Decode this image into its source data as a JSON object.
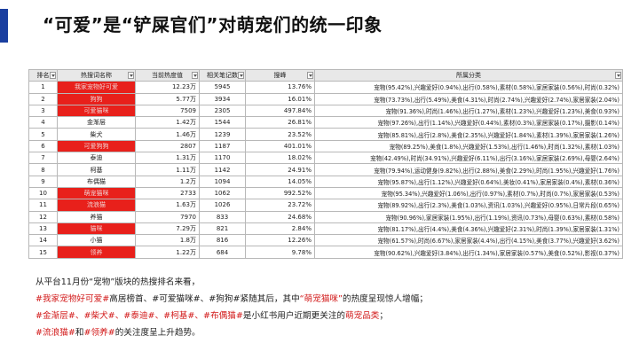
{
  "slide": {
    "title": "“可爱”是“铲屎官们”对萌宠们的统一印象"
  },
  "table": {
    "headers": [
      "排名",
      "热搜词名称",
      "当前热度值",
      "相关笔记数",
      "搜峰",
      "所属分类"
    ],
    "rows": [
      {
        "rank": "1",
        "name": "我家宠物好可爱",
        "heat": "12.23万",
        "count": "5945",
        "soar": "13.76%",
        "category": "宠物(95.42%),兴趣爱好(0.94%),出行(0.58%),素材(0.58%),家居家装(0.56%),时尚(0.32%)",
        "red": true
      },
      {
        "rank": "2",
        "name": "狗狗",
        "heat": "5.77万",
        "count": "3934",
        "soar": "16.01%",
        "category": "宠物(73.73%),出行(5.49%),美食(4.31%),时尚(2.74%),兴趣爱好(2.74%),家居家装(2.04%)",
        "red": true
      },
      {
        "rank": "3",
        "name": "可爱猫咪",
        "heat": "7509",
        "count": "2305",
        "soar": "497.84%",
        "category": "宠物(91.36%),时尚(1.46%),出行(1.27%),素材(1.23%),兴趣爱好(1.23%),美食(0.93%)",
        "red": true
      },
      {
        "rank": "4",
        "name": "金渐层",
        "heat": "1.42万",
        "count": "1544",
        "soar": "26.81%",
        "category": "宠物(97.26%),出行(1.14%),兴趣爱好(0.44%),素材(0.3%),家居家装(0.17%),摄影(0.14%)",
        "red": false
      },
      {
        "rank": "5",
        "name": "柴犬",
        "heat": "1.46万",
        "count": "1239",
        "soar": "23.52%",
        "category": "宠物(85.81%),出行(2.8%),美食(2.35%),兴趣爱好(1.84%),素材(1.39%),家居家装(1.26%)",
        "red": false
      },
      {
        "rank": "6",
        "name": "可爱狗狗",
        "heat": "2807",
        "count": "1187",
        "soar": "401.01%",
        "category": "宠物(89.25%),美食(1.8%),兴趣爱好(1.53%),出行(1.46%),时尚(1.32%),素材(1.03%)",
        "red": true
      },
      {
        "rank": "7",
        "name": "泰迪",
        "heat": "1.31万",
        "count": "1170",
        "soar": "18.02%",
        "category": "宠物(42.49%),时尚(34.91%),兴趣爱好(6.11%),出行(3.16%),家居家装(2.69%),母婴(2.64%)",
        "red": false
      },
      {
        "rank": "8",
        "name": "柯基",
        "heat": "1.11万",
        "count": "1142",
        "soar": "24.91%",
        "category": "宠物(79.94%),运动健身(9.82%),出行(2.88%),美食(2.29%),时尚(1.95%),兴趣爱好(1.76%)",
        "red": false
      },
      {
        "rank": "9",
        "name": "布偶猫",
        "heat": "1.2万",
        "count": "1094",
        "soar": "14.05%",
        "category": "宠物(95.87%),出行(1.12%),兴趣爱好(0.64%),美妆(0.41%),家居家装(0.4%),素材(0.36%)",
        "red": false
      },
      {
        "rank": "10",
        "name": "萌宠猫咪",
        "heat": "2733",
        "count": "1062",
        "soar": "992.52%",
        "category": "宠物(95.34%),兴趣爱好(1.06%),出行(0.97%),素材(0.7%),时尚(0.7%),家居家装(0.53%)",
        "red": true
      },
      {
        "rank": "11",
        "name": "流浪猫",
        "heat": "1.63万",
        "count": "1026",
        "soar": "23.72%",
        "category": "宠物(89.92%),出行(2.3%),美食(1.03%),资讯(1.03%),兴趣爱好(0.95%),日常片段(0.65%)",
        "red": true
      },
      {
        "rank": "12",
        "name": "养猫",
        "heat": "7970",
        "count": "833",
        "soar": "24.68%",
        "category": "宠物(90.96%),家居家装(1.95%),出行(1.19%),资讯(0.73%),母婴(0.63%),素材(0.58%)",
        "red": false
      },
      {
        "rank": "13",
        "name": "猫咪",
        "heat": "7.29万",
        "count": "821",
        "soar": "2.84%",
        "category": "宠物(81.17%),出行(4.4%),美食(4.36%),兴趣爱好(2.31%),时尚(1.39%),家居家装(1.31%)",
        "red": true
      },
      {
        "rank": "14",
        "name": "小猫",
        "heat": "1.8万",
        "count": "816",
        "soar": "12.26%",
        "category": "宠物(61.57%),时尚(6.67%),家居家装(4.4%),出行(4.15%),美食(3.77%),兴趣爱好(3.62%)",
        "red": false
      },
      {
        "rank": "15",
        "name": "领养",
        "heat": "1.22万",
        "count": "684",
        "soar": "9.78%",
        "category": "宠物(90.62%),兴趣爱好(3.84%),出行(1.34%),家居家装(0.57%),美食(0.52%),影视(0.37%)",
        "red": true
      }
    ]
  },
  "summary": {
    "line1": "从平台11月份“宠物”版块的热搜排名来看，",
    "line2_a": "#我家宠物好可爱#",
    "line2_b": "高居榜首、#可爱猫咪#、#狗狗#紧随其后，其中",
    "line2_c": "“萌宠猫咪”",
    "line2_d": "的热度呈现惊人增幅；",
    "line3_a": "#金渐层#、#柴犬#、#泰迪#、#柯基#、#布偶猫#",
    "line3_b": "是小红书用户近期更关注的",
    "line3_c": "萌宠品类",
    "line3_d": "；",
    "line4_a": "#流浪猫#",
    "line4_b": "和",
    "line4_c": "#领养#",
    "line4_d": "的关注度呈上升趋势。"
  },
  "colors": {
    "accent": "#1a3fa0",
    "highlight_red": "#e8201b",
    "text_red": "#d21a1a"
  }
}
